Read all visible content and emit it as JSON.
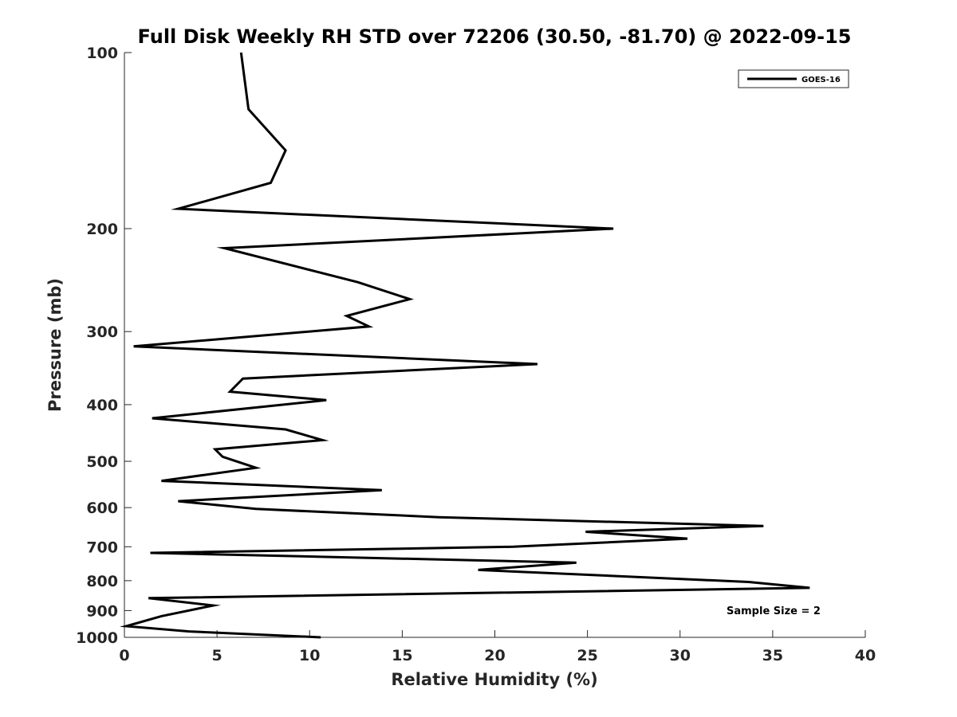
{
  "chart_data": {
    "type": "line",
    "title": "Full Disk Weekly RH STD over 72206 (30.50, -81.70) @ 2022-09-15",
    "xlabel": "Relative Humidity (%)",
    "ylabel": "Pressure (mb)",
    "xlim": [
      0,
      40
    ],
    "ylim": [
      100,
      1000
    ],
    "yscale": "log",
    "y_reversed": true,
    "x_ticks": [
      "0",
      "5",
      "10",
      "15",
      "20",
      "25",
      "30",
      "35",
      "40"
    ],
    "y_ticks": [
      "100",
      "200",
      "300",
      "400",
      "500",
      "600",
      "700",
      "800",
      "900",
      "1000"
    ],
    "grid": false,
    "legend": {
      "placement": "top-right",
      "entries": [
        "GOES-16"
      ]
    },
    "annotation": "Sample Size = 2",
    "series": [
      {
        "name": "GOES-16",
        "color": "#000000",
        "points": [
          [
            6.3,
            100
          ],
          [
            6.7,
            125
          ],
          [
            8.7,
            147
          ],
          [
            7.9,
            167
          ],
          [
            2.9,
            185
          ],
          [
            26.4,
            200
          ],
          [
            5.4,
            216
          ],
          [
            12.6,
            247
          ],
          [
            15.4,
            264
          ],
          [
            12.0,
            282
          ],
          [
            13.2,
            294
          ],
          [
            0.5,
            318
          ],
          [
            22.3,
            341
          ],
          [
            6.4,
            361
          ],
          [
            5.7,
            380
          ],
          [
            10.9,
            393
          ],
          [
            1.5,
            422
          ],
          [
            8.7,
            441
          ],
          [
            10.7,
            460
          ],
          [
            4.9,
            477
          ],
          [
            5.3,
            491
          ],
          [
            7.1,
            513
          ],
          [
            2.0,
            540
          ],
          [
            13.9,
            560
          ],
          [
            2.9,
            585
          ],
          [
            7.1,
            603
          ],
          [
            17.0,
            623
          ],
          [
            34.5,
            645
          ],
          [
            24.9,
            660
          ],
          [
            30.4,
            678
          ],
          [
            21.0,
            700
          ],
          [
            1.4,
            717
          ],
          [
            24.4,
            745
          ],
          [
            19.1,
            767
          ],
          [
            33.7,
            804
          ],
          [
            37.0,
            823
          ],
          [
            1.3,
            857
          ],
          [
            4.8,
            882
          ],
          [
            2.0,
            920
          ],
          [
            0.1,
            957
          ],
          [
            3.5,
            977
          ],
          [
            10.6,
            1000
          ]
        ]
      }
    ]
  }
}
